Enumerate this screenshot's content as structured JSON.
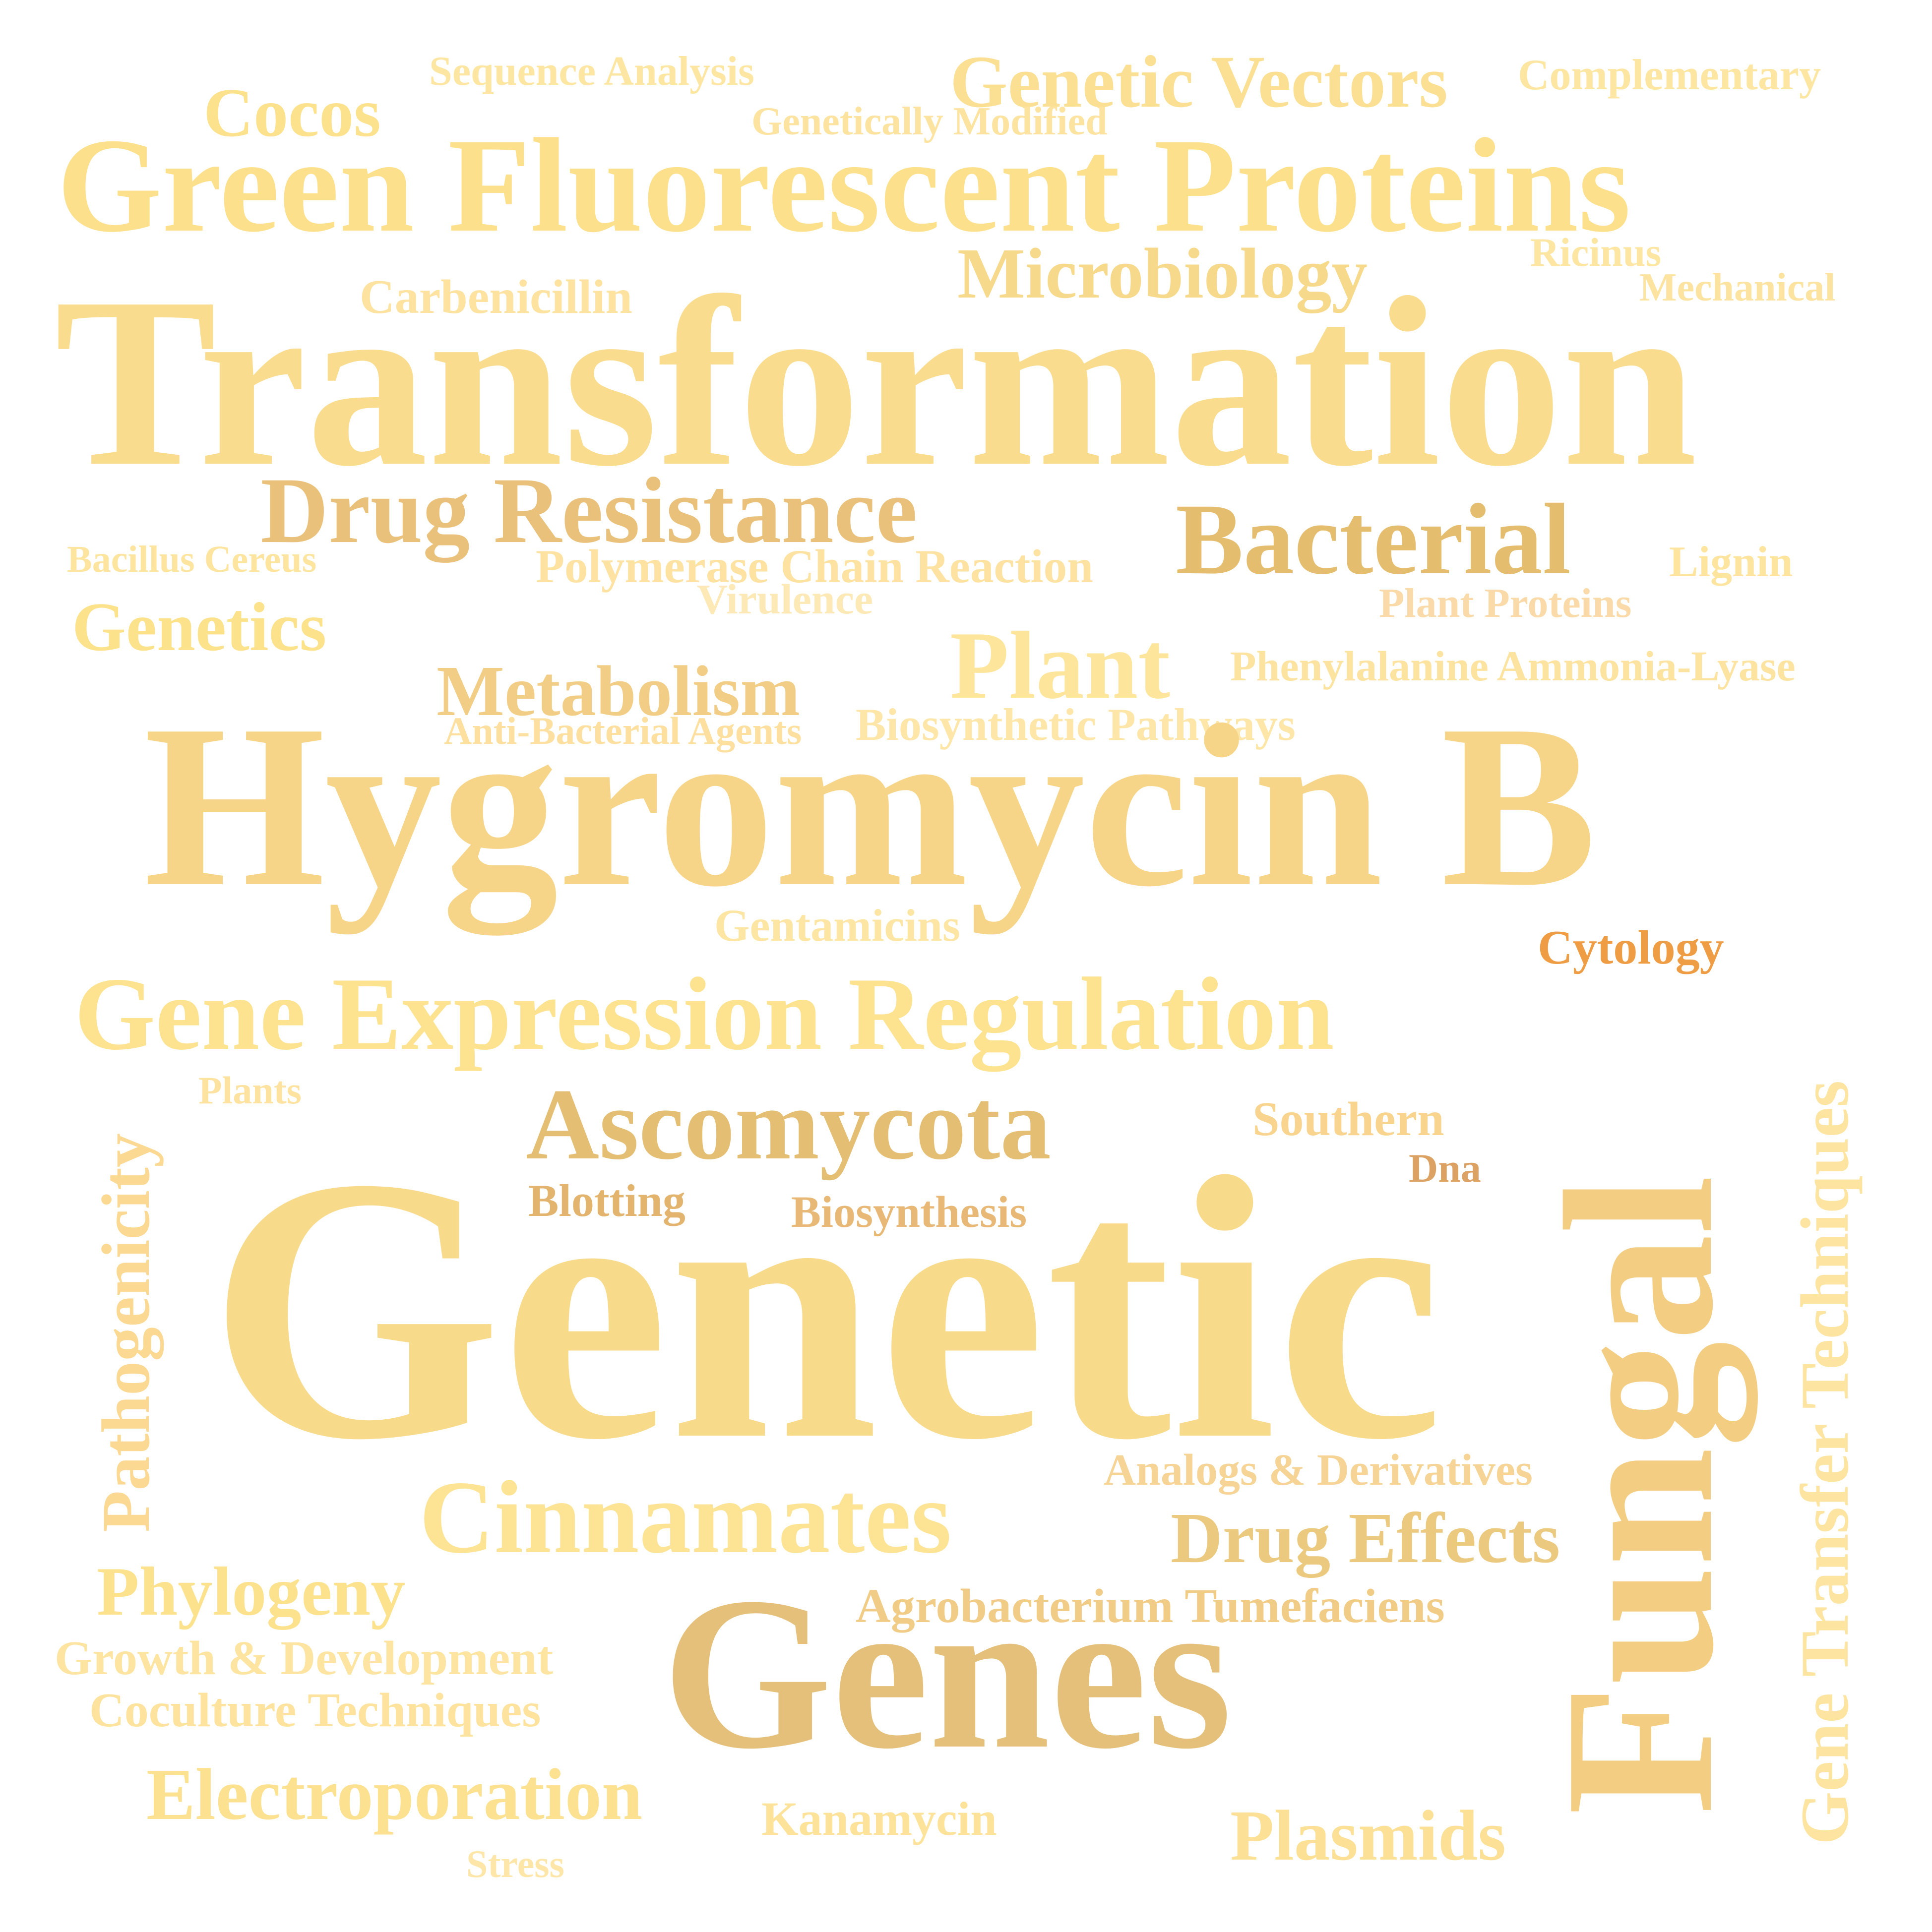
{
  "words": [
    {
      "id": "sequence-analysis",
      "text": "Sequence Analysis",
      "color": "#fde6a2"
    },
    {
      "id": "genetic-vectors",
      "text": "Genetic Vectors",
      "color": "#fbdf92"
    },
    {
      "id": "complementary",
      "text": "Complementary",
      "color": "#fde6a2"
    },
    {
      "id": "cocos",
      "text": "Cocos",
      "color": "#fde28e"
    },
    {
      "id": "genetically-modified",
      "text": "Genetically Modified",
      "color": "#fde3a0"
    },
    {
      "id": "green-fluorescent-proteins",
      "text": "Green Fluorescent Proteins",
      "color": "#fde08c"
    },
    {
      "id": "ricinus",
      "text": "Ricinus",
      "color": "#fde6a2"
    },
    {
      "id": "microbiology",
      "text": "Microbiology",
      "color": "#f6d98a"
    },
    {
      "id": "carbenicillin",
      "text": "Carbenicillin",
      "color": "#fde2a0"
    },
    {
      "id": "mechanical",
      "text": "Mechanical",
      "color": "#fde3a0"
    },
    {
      "id": "transformation",
      "text": "Transformation",
      "color": "#f9dc8e"
    },
    {
      "id": "drug-resistance",
      "text": "Drug Resistance",
      "color": "#e9c17a"
    },
    {
      "id": "bacterial",
      "text": "Bacterial",
      "color": "#e5bd6f"
    },
    {
      "id": "bacillus-cereus",
      "text": "Bacillus Cereus",
      "color": "#fde5a0"
    },
    {
      "id": "polymerase-chain-reaction",
      "text": "Polymerase Chain Reaction",
      "color": "#fde2a2"
    },
    {
      "id": "lignin",
      "text": "Lignin",
      "color": "#fde5a0"
    },
    {
      "id": "virulence",
      "text": "Virulence",
      "color": "#fde9b5"
    },
    {
      "id": "plant-proteins",
      "text": "Plant Proteins",
      "color": "#fadaa8"
    },
    {
      "id": "genetics",
      "text": "Genetics",
      "color": "#fde28c"
    },
    {
      "id": "plant",
      "text": "Plant",
      "color": "#fde69c"
    },
    {
      "id": "metabolism",
      "text": "Metabolism",
      "color": "#f1cd86"
    },
    {
      "id": "phenylalanine-ammonia-lyase",
      "text": "Phenylalanine Ammonia-Lyase",
      "color": "#fde3a0"
    },
    {
      "id": "anti-bacterial-agents",
      "text": "Anti-Bacterial Agents",
      "color": "#fde0a0"
    },
    {
      "id": "biosynthetic-pathways",
      "text": "Biosynthetic Pathways",
      "color": "#fde6a8"
    },
    {
      "id": "hygromycin-b",
      "text": "Hygromycin B",
      "color": "#f7d588"
    },
    {
      "id": "gentamicins",
      "text": "Gentamicins",
      "color": "#fde5a4"
    },
    {
      "id": "cytology",
      "text": "Cytology",
      "color": "#ef9d45"
    },
    {
      "id": "gene-expression-regulation",
      "text": "Gene Expression Regulation",
      "color": "#fde38f"
    },
    {
      "id": "plants",
      "text": "Plants",
      "color": "#fde2a0"
    },
    {
      "id": "southern",
      "text": "Southern",
      "color": "#f8d48e"
    },
    {
      "id": "ascomycota",
      "text": "Ascomycota",
      "color": "#e4be72"
    },
    {
      "id": "dna",
      "text": "Dna",
      "color": "#dba264"
    },
    {
      "id": "blotting",
      "text": "Blotting",
      "color": "#e2b46e"
    },
    {
      "id": "biosynthesis",
      "text": "Biosynthesis",
      "color": "#e8b877"
    },
    {
      "id": "pathogenicity",
      "text": "Pathogenicity",
      "color": "#fbd992",
      "rotate": true
    },
    {
      "id": "genetic",
      "text": "Genetic",
      "color": "#f8da8b"
    },
    {
      "id": "fungal",
      "text": "Fungal",
      "color": "#f3cd82",
      "rotate": true
    },
    {
      "id": "gene-transfer-techniques",
      "text": "Gene Transfer Techniques",
      "color": "#fde4a0",
      "rotate": true
    },
    {
      "id": "analogs-derivatives",
      "text": "Analogs & Derivatives",
      "color": "#f6d496"
    },
    {
      "id": "cinnamates",
      "text": "Cinnamates",
      "color": "#fde394"
    },
    {
      "id": "drug-effects",
      "text": "Drug Effects",
      "color": "#ebc97f"
    },
    {
      "id": "phylogeny",
      "text": "Phylogeny",
      "color": "#fde28e"
    },
    {
      "id": "agrobacterium-tumefaciens",
      "text": "Agrobacterium Tumefaciens",
      "color": "#f1cc87"
    },
    {
      "id": "growth-development",
      "text": "Growth & Development",
      "color": "#fde4a0"
    },
    {
      "id": "genes",
      "text": "Genes",
      "color": "#e5c07a"
    },
    {
      "id": "coculture-techniques",
      "text": "Coculture Techniques",
      "color": "#fde39e"
    },
    {
      "id": "electroporation",
      "text": "Electroporation",
      "color": "#fce190"
    },
    {
      "id": "kanamycin",
      "text": "Kanamycin",
      "color": "#fde29a"
    },
    {
      "id": "plasmids",
      "text": "Plasmids",
      "color": "#fce096"
    },
    {
      "id": "stress",
      "text": "Stress",
      "color": "#fde6a8"
    }
  ]
}
